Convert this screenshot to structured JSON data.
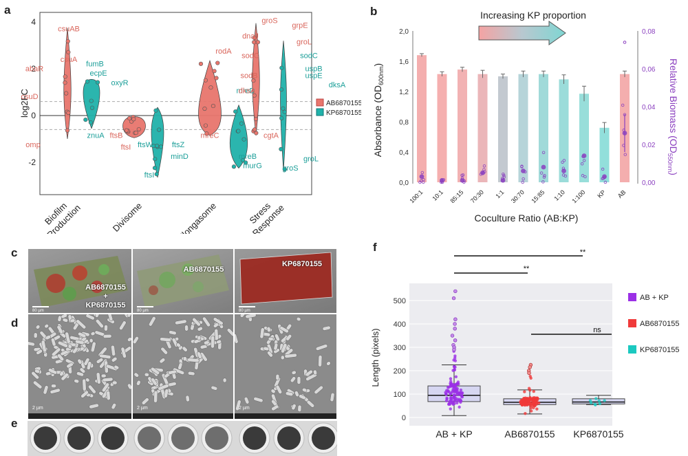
{
  "panel_letters": {
    "a": "a",
    "b": "b",
    "c": "c",
    "d": "d",
    "e": "e",
    "f": "f"
  },
  "colors": {
    "ab": "#e8766d",
    "kp": "#20b2aa",
    "ab_light": "#f4a3a3",
    "kp_light": "#8fd3d0",
    "purple": "#8a3fbf",
    "ab_f": "#f03a3a",
    "kp_f": "#1bc9c0",
    "abkp_f": "#9b30e6"
  },
  "panel_a": {
    "ylabel": "log2FC",
    "yticks": [
      {
        "v": 4,
        "t": "4"
      },
      {
        "v": 2,
        "t": "2"
      },
      {
        "v": 0,
        "t": "0"
      },
      {
        "v": -2,
        "t": "-2"
      }
    ],
    "categories": [
      "Biofilm Production",
      "Divisome",
      "Elongasome",
      "Stress Response"
    ],
    "category_lines": [
      [
        "Biofilm",
        "Production"
      ],
      [
        "Divisome"
      ],
      [
        "Elongasome"
      ],
      [
        "Stress",
        "Response"
      ]
    ],
    "legend": [
      "AB6870155",
      "KP6870155"
    ],
    "gene_labels": [
      {
        "t": "csuAB",
        "c": "ab",
        "v": 3.6,
        "cat": 0,
        "dx": -8
      },
      {
        "t": "csuA",
        "c": "ab",
        "v": 2.3,
        "cat": 0,
        "dx": -8
      },
      {
        "t": "abaR",
        "c": "ab",
        "v": 1.9,
        "cat": 0,
        "dx": -58
      },
      {
        "t": "csuD",
        "c": "ab",
        "v": 0.7,
        "cat": 0,
        "dx": -65
      },
      {
        "t": "omp",
        "c": "ab",
        "v": -1.35,
        "cat": 0,
        "dx": -60
      },
      {
        "t": "fumB",
        "c": "kp",
        "v": 2.1,
        "cat": 0,
        "dx": 30
      },
      {
        "t": "ecpE",
        "c": "kp",
        "v": 1.7,
        "cat": 0,
        "dx": 35
      },
      {
        "t": "oxyR",
        "c": "kp",
        "v": 1.3,
        "cat": 0,
        "dx": 66
      },
      {
        "t": "znuA",
        "c": "kp",
        "v": -0.95,
        "cat": 0,
        "dx": 31
      },
      {
        "t": "ftsB",
        "c": "ab",
        "v": -0.95,
        "cat": 1,
        "dx": -48
      },
      {
        "t": "ftsI",
        "c": "ab",
        "v": -1.45,
        "cat": 1,
        "dx": -34
      },
      {
        "t": "ftsW",
        "c": "kp",
        "v": -1.35,
        "cat": 1,
        "dx": -6
      },
      {
        "t": "ftsZ",
        "c": "kp",
        "v": -1.35,
        "cat": 1,
        "dx": 42
      },
      {
        "t": "minD",
        "c": "kp",
        "v": -1.85,
        "cat": 1,
        "dx": 44
      },
      {
        "t": "ftsI",
        "c": "kp",
        "v": -2.65,
        "cat": 1,
        "dx": 0
      },
      {
        "t": "rodA",
        "c": "ab",
        "v": 2.65,
        "cat": 2,
        "dx": 0
      },
      {
        "t": "mreC",
        "c": "ab",
        "v": -0.95,
        "cat": 2,
        "dx": -20
      },
      {
        "t": "mreD",
        "c": "kp",
        "v": 0.95,
        "cat": 2,
        "dx": 32
      },
      {
        "t": "mreB",
        "c": "kp",
        "v": -1.85,
        "cat": 2,
        "dx": 35
      },
      {
        "t": "murG",
        "c": "kp",
        "v": -2.25,
        "cat": 2,
        "dx": 42
      },
      {
        "t": "groS",
        "c": "ab",
        "v": 3.95,
        "cat": 3,
        "dx": -12
      },
      {
        "t": "grpE",
        "c": "ab",
        "v": 3.75,
        "cat": 3,
        "dx": 32
      },
      {
        "t": "dnaJ",
        "c": "ab",
        "v": 3.3,
        "cat": 3,
        "dx": -40
      },
      {
        "t": "groL",
        "c": "ab",
        "v": 3.05,
        "cat": 3,
        "dx": 38
      },
      {
        "t": "sodC",
        "c": "ab",
        "v": 2.45,
        "cat": 3,
        "dx": -40
      },
      {
        "t": "sodC",
        "c": "kp",
        "v": 2.45,
        "cat": 3,
        "dx": 45
      },
      {
        "t": "uspB",
        "c": "kp",
        "v": 1.9,
        "cat": 3,
        "dx": 52
      },
      {
        "t": "uspE",
        "c": "kp",
        "v": 1.6,
        "cat": 3,
        "dx": 52
      },
      {
        "t": "sodB",
        "c": "ab",
        "v": 1.6,
        "cat": 3,
        "dx": -42
      },
      {
        "t": "dksA",
        "c": "ab",
        "v": 0.95,
        "cat": 3,
        "dx": -45
      },
      {
        "t": "dksA",
        "c": "kp",
        "v": 1.2,
        "cat": 3,
        "dx": 86
      },
      {
        "t": "cgtA",
        "c": "ab",
        "v": -0.95,
        "cat": 3,
        "dx": -10
      },
      {
        "t": "groL",
        "c": "kp",
        "v": -1.95,
        "cat": 3,
        "dx": 48
      },
      {
        "t": "groS",
        "c": "kp",
        "v": -2.35,
        "cat": 3,
        "dx": 18
      }
    ]
  },
  "panel_b": {
    "banner": "Increasing KP proportion",
    "ylabel_left_main": "Absorbance (OD",
    "ylabel_left_sub": "600nm",
    "ylabel_left_end": ")",
    "ylabel_right_main": "Relative Biomass (OD",
    "ylabel_right_sub": "550nm",
    "ylabel_right_end": ")",
    "xlabel": "Coculture Ratio (AB:KP)",
    "yticks_left": [
      "0,0",
      "0,4",
      "0,8",
      "1,2",
      "1,6",
      "2,0"
    ],
    "yticks_right": [
      "0,00",
      "0,02",
      "0,04",
      "0,06",
      "0,08"
    ]
  },
  "panel_c": {
    "labels": [
      [
        "AB6870155",
        "+",
        "KP6870155"
      ],
      [
        "AB6870155"
      ],
      [
        "KP6870155"
      ]
    ],
    "scale": "80 µm"
  },
  "panel_d": {
    "scale": "2 µm"
  },
  "panel_f": {
    "ylabel": "Length (pixels)",
    "yticks": [
      "0",
      "100",
      "200",
      "300",
      "400",
      "500"
    ],
    "categories": [
      "AB + KP",
      "AB6870155",
      "KP6870155"
    ],
    "legend": [
      "AB + KP",
      "AB6870155",
      "KP6870155"
    ],
    "sig_labels": [
      "**",
      "**",
      "ns"
    ]
  },
  "chart_data": [
    {
      "type": "bar",
      "title": "",
      "xlabel": "Coculture Ratio (AB:KP)",
      "ylabel": "Absorbance (OD600nm)",
      "ylabel_right": "Relative Biomass (OD550nm)",
      "categories": [
        "100:1",
        "10:1",
        "85:15",
        "70:30",
        "1:1",
        "30:70",
        "15:85",
        "1:10",
        "1:100",
        "KP",
        "AB"
      ],
      "ylim": [
        0,
        2.0
      ],
      "ylim_right": [
        0,
        0.08
      ],
      "series": [
        {
          "values": [
            1.68,
            1.43,
            1.49,
            1.43,
            1.4,
            1.43,
            1.43,
            1.36,
            1.17,
            0.72,
            1.43
          ]
        },
        {
          "values": [
            0.003,
            0.001,
            0.001,
            0.005,
            0.001,
            0.006,
            0.008,
            0.006,
            0.014,
            0.003,
            0.026
          ],
          "axis": "right"
        }
      ],
      "error": [
        0.02,
        0.03,
        0.03,
        0.05,
        0.03,
        0.04,
        0.04,
        0.06,
        0.1,
        0.07,
        0.04
      ]
    },
    {
      "type": "box",
      "title": "",
      "ylabel": "Length (pixels)",
      "categories": [
        "AB + KP",
        "AB6870155",
        "KP6870155"
      ],
      "ylim": [
        0,
        560
      ],
      "box": [
        {
          "min": 8,
          "q1": 68,
          "median": 95,
          "q3": 135,
          "max": 225
        },
        {
          "min": 15,
          "q1": 55,
          "median": 65,
          "q3": 80,
          "max": 118
        },
        {
          "min": 55,
          "q1": 58,
          "median": 66,
          "q3": 80,
          "max": 95
        }
      ]
    }
  ]
}
